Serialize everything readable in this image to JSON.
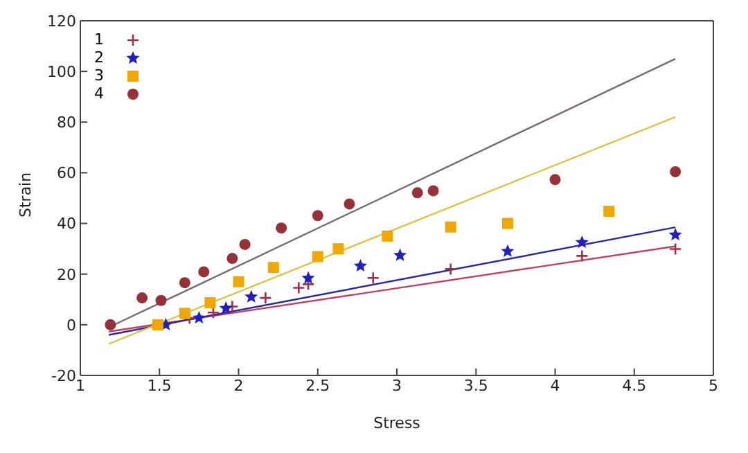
{
  "chart_data": {
    "type": "scatter",
    "xlabel": "Stress",
    "ylabel": "Strain",
    "xlim": [
      1,
      5
    ],
    "ylim": [
      -20,
      120
    ],
    "xticks": [
      1,
      1.5,
      2,
      2.5,
      3,
      3.5,
      4,
      4.5,
      5
    ],
    "yticks": [
      -20,
      0,
      20,
      40,
      60,
      80,
      100,
      120
    ],
    "legend": "top left",
    "series": [
      {
        "name": "1",
        "color": "#a0304a",
        "marker": "cross",
        "x": [
          1.69,
          1.84,
          1.96,
          2.17,
          2.38,
          2.44,
          2.85,
          3.34,
          4.17,
          4.76
        ],
        "values": [
          2.6,
          4.8,
          7.2,
          10.6,
          14.6,
          16,
          18.5,
          22,
          27.2,
          29.9
        ]
      },
      {
        "name": "2",
        "color": "#2020c0",
        "marker": "star",
        "x": [
          1.54,
          1.75,
          1.92,
          2.08,
          2.44,
          2.77,
          3.02,
          3.7,
          4.17,
          4.76
        ],
        "values": [
          0,
          2.7,
          6.5,
          11,
          18.4,
          23.2,
          27.4,
          29,
          32.5,
          35.5
        ]
      },
      {
        "name": "3",
        "color": "#f0a800",
        "marker": "square",
        "x": [
          1.49,
          1.66,
          1.82,
          2,
          2.22,
          2.5,
          2.63,
          2.94,
          3.34,
          3.7,
          4.34
        ],
        "values": [
          0,
          4.5,
          8.7,
          17,
          22.6,
          26.9,
          30,
          35,
          38.6,
          40,
          44.8
        ]
      },
      {
        "name": "4",
        "color": "#983038",
        "marker": "circle",
        "x": [
          1.19,
          1.39,
          1.51,
          1.66,
          1.78,
          1.96,
          2.04,
          2.27,
          2.5,
          2.7,
          3.13,
          3.23,
          4,
          4.76
        ],
        "values": [
          0,
          10.6,
          9.6,
          16.6,
          20.9,
          26.2,
          31.7,
          38.2,
          43.1,
          47.7,
          52.1,
          52.9,
          57.3,
          60.4
        ]
      },
      {
        "type": "line",
        "color": "#c04060",
        "marker": "none",
        "x": [
          1.18,
          4.76
        ],
        "values": [
          -2.7,
          31
        ]
      },
      {
        "type": "line",
        "color": "#2a2aa0",
        "marker": "none",
        "x": [
          1.18,
          4.76
        ],
        "values": [
          -4,
          38.5
        ]
      },
      {
        "type": "line",
        "color": "#d8c84a",
        "marker": "none",
        "x": [
          1.18,
          4.76
        ],
        "values": [
          -7.5,
          82
        ]
      },
      {
        "type": "line",
        "color": "#7a6a72",
        "marker": "none",
        "x": [
          1.18,
          4.76
        ],
        "values": [
          -1,
          105
        ]
      }
    ]
  }
}
